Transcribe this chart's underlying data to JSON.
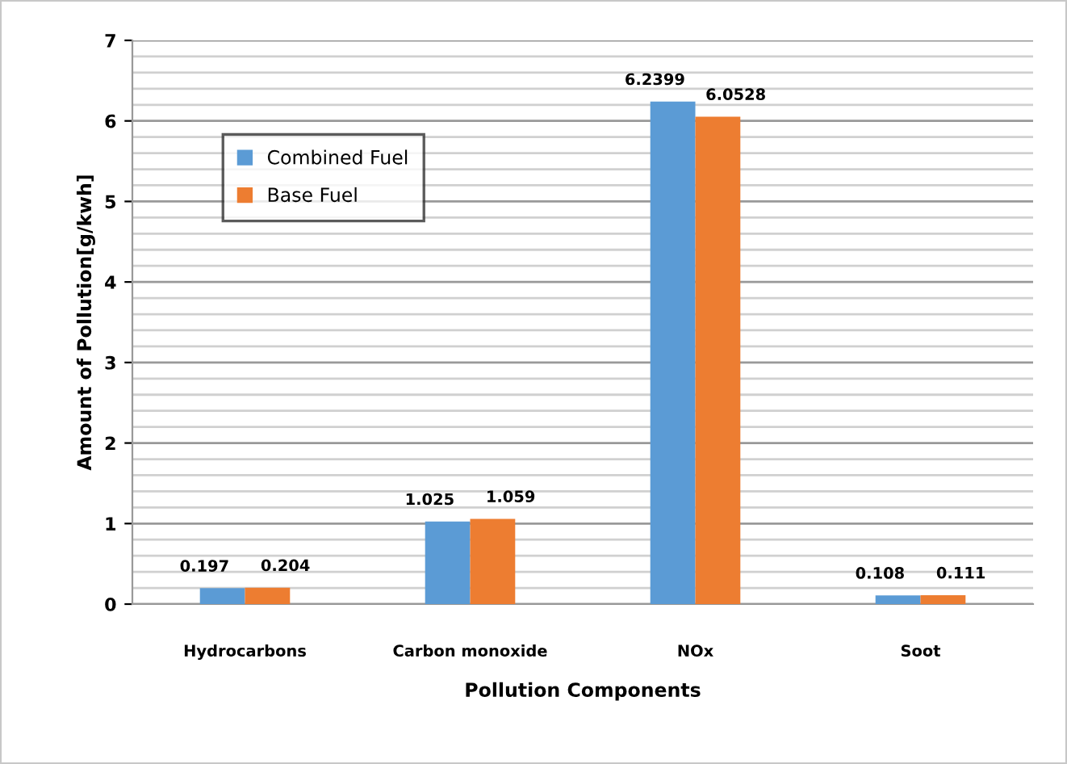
{
  "chart_data": {
    "type": "bar",
    "categories": [
      "Hydrocarbons",
      "Carbon monoxide",
      "NOx",
      "Soot"
    ],
    "series": [
      {
        "name": "Combined Fuel",
        "color": "#5b9bd5",
        "values": [
          0.197,
          1.025,
          6.2399,
          0.108
        ]
      },
      {
        "name": "Base Fuel",
        "color": "#ed7d31",
        "values": [
          0.204,
          1.059,
          6.0528,
          0.111
        ]
      }
    ],
    "xlabel": "Pollution Components",
    "ylabel": "Amount of Pollution[g/kwh]",
    "ylim": [
      0,
      7
    ],
    "yticks": [
      0,
      1,
      2,
      3,
      4,
      5,
      6,
      7
    ],
    "grid": "y",
    "legend": "top left",
    "data_labels": true
  }
}
